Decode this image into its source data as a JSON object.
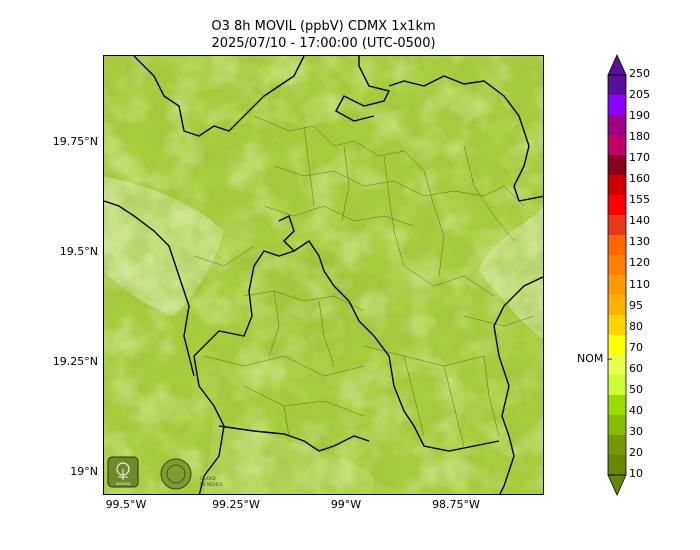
{
  "title": {
    "line1": "O3 8h MOVIL (ppbV) CDMX 1x1km",
    "line2": "2025/07/10 - 17:00:00 (UTC-0500)"
  },
  "map": {
    "lat_labels": [
      "19.75°N",
      "19.5°N",
      "19.25°N",
      "19°N"
    ],
    "lon_labels": [
      "99.5°W",
      "99.25°W",
      "99°W",
      "98.75°W"
    ],
    "base_color": "#9cc43a",
    "logos": [
      "SEDEMA",
      "CIUDAD DE MÉXICO"
    ]
  },
  "colorbar": {
    "ticks": [
      "250",
      "205",
      "190",
      "180",
      "170",
      "160",
      "155",
      "140",
      "130",
      "120",
      "110",
      "95",
      "80",
      "70",
      "60",
      "50",
      "40",
      "30",
      "20",
      "10"
    ],
    "colors": [
      "#5a0f9b",
      "#8b00ff",
      "#9e0088",
      "#c2006a",
      "#8b0020",
      "#cc0000",
      "#ff0000",
      "#e8381a",
      "#ff6600",
      "#ff7f00",
      "#ff9900",
      "#ffb000",
      "#ffd400",
      "#ffff00",
      "#e6ff4d",
      "#ccff33",
      "#99dd00",
      "#88bb00",
      "#779900",
      "#668800"
    ],
    "nom_label": "NOM"
  }
}
